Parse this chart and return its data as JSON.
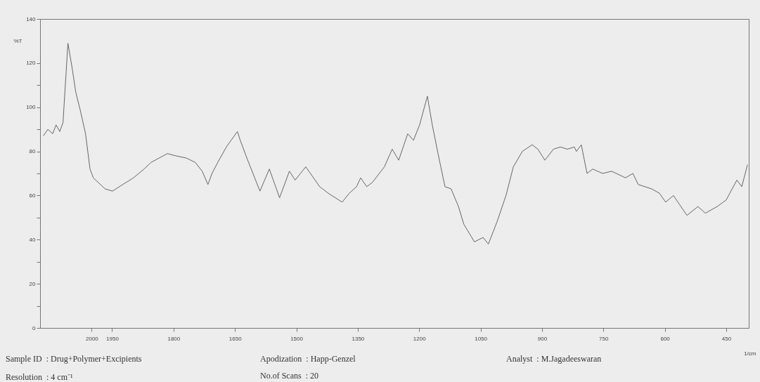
{
  "chart_data": {
    "type": "line",
    "xlabel": "1/cm",
    "ylabel": "%T",
    "color": "#666666",
    "xlim": [
      2126,
      395
    ],
    "xticks": [
      2000,
      1950,
      1800,
      1650,
      1500,
      1350,
      1200,
      1050,
      900,
      750,
      600,
      450
    ],
    "ylim": [
      0,
      140
    ],
    "yticks": [
      0,
      {
        "value": 10,
        "label": null
      },
      20,
      {
        "value": 30,
        "label": null
      },
      40,
      {
        "value": 50,
        "label": null
      },
      60,
      {
        "value": 70,
        "label": null
      },
      80,
      {
        "value": 90,
        "label": null
      },
      100,
      {
        "value": 110,
        "label": null
      },
      120,
      140
    ],
    "x": [
      2118,
      2107,
      2095,
      2087,
      2078,
      2070,
      2058,
      2047,
      2039,
      2027,
      2015,
      2004,
      1996,
      1967,
      1949,
      1924,
      1898,
      1872,
      1855,
      1815,
      1795,
      1769,
      1747,
      1730,
      1716,
      1706,
      1692,
      1671,
      1644,
      1637,
      1623,
      1606,
      1589,
      1566,
      1541,
      1517,
      1503,
      1477,
      1443,
      1422,
      1388,
      1371,
      1353,
      1343,
      1328,
      1314,
      1285,
      1266,
      1250,
      1228,
      1214,
      1199,
      1180,
      1168,
      1154,
      1137,
      1122,
      1104,
      1091,
      1065,
      1044,
      1031,
      1010,
      988,
      970,
      948,
      924,
      910,
      893,
      872,
      855,
      838,
      821,
      816,
      804,
      790,
      776,
      752,
      730,
      696,
      678,
      665,
      632,
      613,
      598,
      579,
      546,
      519,
      501,
      472,
      450,
      424,
      412,
      398
    ],
    "values": [
      87,
      90,
      88,
      92,
      89,
      93,
      129,
      117,
      107,
      98,
      88,
      72,
      68,
      63,
      62,
      65,
      68,
      72,
      75,
      79,
      78,
      77,
      75,
      71,
      65,
      70,
      75,
      82,
      89,
      85,
      78,
      70,
      62,
      72,
      59,
      71,
      67,
      73,
      64,
      61,
      57,
      61,
      64,
      68,
      64,
      66,
      73,
      81,
      76,
      88,
      85,
      92,
      105,
      92,
      79,
      64,
      63,
      55,
      47,
      39,
      41,
      38,
      48,
      60,
      73,
      80,
      83,
      81,
      76,
      81,
      82,
      81,
      82,
      80,
      83,
      70,
      72,
      70,
      71,
      68,
      70,
      65,
      63,
      61,
      57,
      60,
      51,
      55,
      52,
      55,
      58,
      67,
      64,
      74
    ],
    "annotations": [
      "Sample ID  : Drug+Polymer+Excipients",
      "Resolution  : 4 cm⁻¹",
      "Apodization  : Happ-Genzel",
      "No.of Scans  : 20",
      "Analyst  : M.Jagadeeswaran"
    ]
  }
}
